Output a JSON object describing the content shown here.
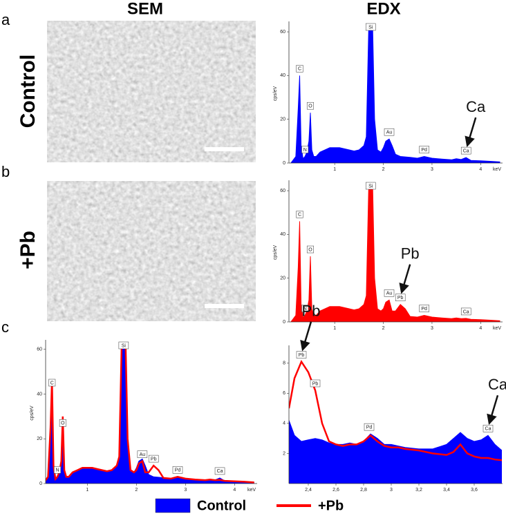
{
  "panel_labels": [
    "a",
    "b",
    "c"
  ],
  "column_titles": [
    "SEM",
    "EDX"
  ],
  "chart_data": [
    {
      "type": "area",
      "ylabel": "cps/eV",
      "xlabel": "keV",
      "xlim": [
        0.06,
        4.45
      ],
      "ylim": [
        0,
        63.5
      ],
      "xticks": [
        1,
        2,
        3,
        4
      ],
      "yticks": [
        0,
        20,
        40,
        60
      ],
      "x": [
        0.1,
        0.2,
        0.25,
        0.28,
        0.31,
        0.35,
        0.39,
        0.43,
        0.47,
        0.5,
        0.53,
        0.57,
        0.62,
        0.7,
        0.8,
        0.9,
        1.0,
        1.1,
        1.2,
        1.3,
        1.4,
        1.5,
        1.6,
        1.65,
        1.7,
        1.74,
        1.78,
        1.82,
        1.88,
        1.95,
        2.0,
        2.05,
        2.12,
        2.18,
        2.25,
        2.35,
        2.45,
        2.55,
        2.7,
        2.84,
        3.0,
        3.2,
        3.4,
        3.5,
        3.6,
        3.7,
        3.8,
        4.0,
        4.2,
        4.4
      ],
      "series": [
        {
          "name": "Control",
          "color": "#0000ff",
          "style": "area",
          "values": [
            0,
            3,
            25,
            40,
            8,
            2,
            3,
            5,
            10,
            23,
            6,
            3,
            3,
            5,
            6,
            7,
            7,
            7,
            6.5,
            6,
            5.5,
            6,
            8,
            12,
            62,
            62,
            62,
            20,
            6,
            5,
            7,
            10,
            11,
            8,
            4,
            3,
            2.8,
            2.6,
            2.2,
            3,
            2.2,
            1.8,
            1.5,
            2,
            1.6,
            2.5,
            1.2,
            1,
            0.8,
            0.5
          ]
        }
      ],
      "peaks": [
        {
          "label": "C",
          "x": 0.28,
          "y": 40
        },
        {
          "label": "N",
          "x": 0.39,
          "y": 3
        },
        {
          "label": "O",
          "x": 0.5,
          "y": 23
        },
        {
          "label": "Si",
          "x": 1.74,
          "y": 62
        },
        {
          "label": "Au",
          "x": 2.12,
          "y": 11
        },
        {
          "label": "Pd",
          "x": 2.84,
          "y": 3
        },
        {
          "label": "Ca",
          "x": 3.7,
          "y": 2.5
        }
      ],
      "annotations": [
        "Ca"
      ]
    },
    {
      "type": "area",
      "ylabel": "cps/eV",
      "xlabel": "keV",
      "xlim": [
        0.06,
        4.45
      ],
      "ylim": [
        0,
        63.5
      ],
      "xticks": [
        1,
        2,
        3,
        4
      ],
      "yticks": [
        0,
        20,
        40,
        60
      ],
      "x": [
        0.1,
        0.2,
        0.25,
        0.28,
        0.31,
        0.35,
        0.39,
        0.43,
        0.47,
        0.5,
        0.53,
        0.57,
        0.62,
        0.7,
        0.8,
        0.9,
        1.0,
        1.1,
        1.2,
        1.3,
        1.4,
        1.5,
        1.6,
        1.65,
        1.7,
        1.74,
        1.78,
        1.82,
        1.88,
        1.95,
        2.0,
        2.05,
        2.12,
        2.18,
        2.25,
        2.35,
        2.45,
        2.55,
        2.7,
        2.84,
        3.0,
        3.2,
        3.4,
        3.5,
        3.6,
        3.7,
        3.8,
        4.0,
        4.2,
        4.4
      ],
      "series": [
        {
          "name": "+Pb",
          "color": "#ff0000",
          "style": "area",
          "values": [
            0,
            3,
            25,
            46,
            8,
            2,
            3,
            5,
            10,
            30,
            6,
            3,
            3,
            5,
            6,
            7,
            7,
            7,
            6.5,
            6,
            5.5,
            6,
            8,
            12,
            62,
            62,
            62,
            20,
            6,
            5,
            6,
            9,
            10,
            5,
            5,
            8,
            6,
            2.5,
            2.2,
            3,
            2.2,
            1.8,
            1.5,
            1.8,
            1.5,
            1.6,
            1.2,
            1,
            0.8,
            0.5
          ]
        }
      ],
      "peaks": [
        {
          "label": "C",
          "x": 0.28,
          "y": 46
        },
        {
          "label": "N",
          "x": 0.39,
          "y": 3
        },
        {
          "label": "O",
          "x": 0.5,
          "y": 30
        },
        {
          "label": "Si",
          "x": 1.74,
          "y": 62
        },
        {
          "label": "Au",
          "x": 2.12,
          "y": 10
        },
        {
          "label": "Pb",
          "x": 2.35,
          "y": 8
        },
        {
          "label": "Pd",
          "x": 2.84,
          "y": 3
        },
        {
          "label": "Ca",
          "x": 3.7,
          "y": 1.6
        }
      ],
      "annotations": [
        "Pb"
      ]
    },
    {
      "type": "area",
      "ylabel": "cps/eV",
      "xlabel": "keV",
      "legend": "bottom",
      "xlim": [
        0.15,
        4.46
      ],
      "ylim": [
        0,
        63
      ],
      "xticks": [
        1,
        2,
        3,
        4
      ],
      "yticks": [
        0,
        20,
        40,
        60
      ],
      "x": [
        0.1,
        0.2,
        0.25,
        0.28,
        0.31,
        0.35,
        0.39,
        0.43,
        0.47,
        0.5,
        0.53,
        0.57,
        0.62,
        0.7,
        0.8,
        0.9,
        1.0,
        1.1,
        1.2,
        1.3,
        1.4,
        1.5,
        1.6,
        1.65,
        1.7,
        1.74,
        1.78,
        1.82,
        1.88,
        1.95,
        2.0,
        2.05,
        2.12,
        2.18,
        2.25,
        2.35,
        2.45,
        2.55,
        2.7,
        2.84,
        3.0,
        3.2,
        3.4,
        3.5,
        3.6,
        3.7,
        3.8,
        4.0,
        4.2,
        4.4
      ],
      "series": [
        {
          "name": "Control",
          "color": "#0000ff",
          "style": "area",
          "values": [
            0,
            3,
            25,
            40,
            8,
            2,
            3,
            5,
            10,
            23,
            6,
            3,
            3,
            5,
            6,
            7,
            7,
            7,
            6.5,
            6,
            5.5,
            6,
            8,
            12,
            62,
            62,
            62,
            20,
            6,
            5,
            7,
            10,
            11,
            8,
            4,
            3,
            2.8,
            2.6,
            2.2,
            3,
            2.2,
            1.8,
            1.5,
            2,
            1.6,
            2.5,
            1.2,
            1,
            0.8,
            0.5
          ]
        },
        {
          "name": "+Pb",
          "color": "#ff0000",
          "style": "line",
          "values": [
            0,
            3,
            25,
            46,
            8,
            2,
            3,
            5,
            10,
            30,
            6,
            3,
            3,
            5,
            6,
            7,
            7,
            7,
            6.5,
            6,
            5.5,
            6,
            8,
            12,
            62,
            62,
            62,
            20,
            6,
            5,
            6,
            9,
            10,
            5,
            5,
            8,
            6,
            2.5,
            2.2,
            3,
            2.2,
            1.8,
            1.5,
            1.8,
            1.5,
            1.6,
            1.2,
            1,
            0.8,
            0.5
          ]
        }
      ],
      "peaks": [
        {
          "label": "C",
          "x": 0.28,
          "y": 42
        },
        {
          "label": "N",
          "x": 0.39,
          "y": 3
        },
        {
          "label": "O",
          "x": 0.5,
          "y": 24
        },
        {
          "label": "Si",
          "x": 1.74,
          "y": 62
        },
        {
          "label": "Au",
          "x": 2.12,
          "y": 10
        },
        {
          "label": "Pb",
          "x": 2.35,
          "y": 8
        },
        {
          "label": "Pd",
          "x": 2.84,
          "y": 3
        },
        {
          "label": "Ca",
          "x": 3.7,
          "y": 2.5
        }
      ]
    },
    {
      "type": "area",
      "xlim": [
        2.26,
        3.805
      ],
      "ylim": [
        0,
        9
      ],
      "xticks": [
        {
          "value": 2.4,
          "label": "2,4"
        },
        {
          "value": 2.6,
          "label": "2,6"
        },
        {
          "value": 2.8,
          "label": "2,8"
        },
        {
          "value": 3,
          "label": "3"
        },
        {
          "value": 3.2,
          "label": "3,2"
        },
        {
          "value": 3.4,
          "label": "3,4"
        },
        {
          "value": 3.6,
          "label": "3,6"
        }
      ],
      "yticks": [
        2,
        4,
        6,
        8
      ],
      "x": [
        2.26,
        2.3,
        2.35,
        2.4,
        2.45,
        2.5,
        2.55,
        2.6,
        2.65,
        2.7,
        2.75,
        2.8,
        2.85,
        2.9,
        2.95,
        3.0,
        3.05,
        3.1,
        3.2,
        3.3,
        3.4,
        3.45,
        3.5,
        3.55,
        3.6,
        3.65,
        3.7,
        3.75,
        3.8
      ],
      "series": [
        {
          "name": "Control",
          "color": "#0000ff",
          "style": "area",
          "values": [
            4.2,
            3.2,
            2.8,
            2.9,
            3.0,
            2.9,
            2.7,
            2.6,
            2.6,
            2.7,
            2.6,
            2.8,
            3.3,
            3.0,
            2.6,
            2.6,
            2.5,
            2.4,
            2.3,
            2.3,
            2.6,
            3.0,
            3.4,
            3.0,
            2.8,
            2.9,
            3.2,
            2.6,
            2.2
          ]
        },
        {
          "name": "+Pb",
          "color": "#ff0000",
          "style": "line",
          "values": [
            5.0,
            7.0,
            8.1,
            7.4,
            6.2,
            4.0,
            2.8,
            2.6,
            2.5,
            2.6,
            2.6,
            2.8,
            3.2,
            2.8,
            2.5,
            2.4,
            2.4,
            2.3,
            2.2,
            2.0,
            1.9,
            2.1,
            2.6,
            2.0,
            1.8,
            1.7,
            1.7,
            1.6,
            1.55
          ]
        }
      ],
      "peaks": [
        {
          "label": "Pb",
          "x": 2.35,
          "y": 8.1
        },
        {
          "label": "Pb",
          "x": 2.45,
          "y": 6.2
        },
        {
          "label": "Pd",
          "x": 2.84,
          "y": 3.3
        },
        {
          "label": "Ca",
          "x": 3.7,
          "y": 3.2
        }
      ],
      "annotations": [
        "Pb",
        "Ca"
      ]
    }
  ]
}
